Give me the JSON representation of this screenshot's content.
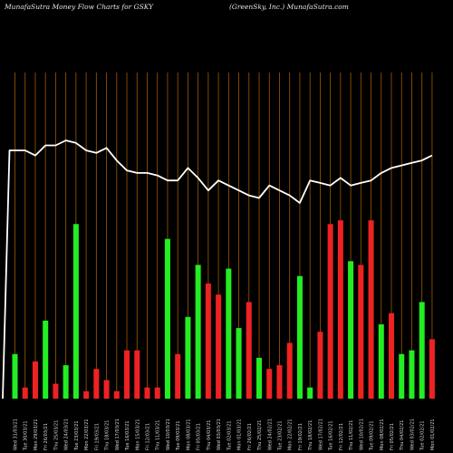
{
  "header": {
    "left_title": "MunafaSutra  Money Flow  Charts for GSKY",
    "right_title": "(GreenSky,  Inc.) MunafaSutra.com"
  },
  "colors": {
    "up": "#22ee22",
    "down": "#ee2222",
    "line": "#ffffff",
    "grid": "#a05a00",
    "text": "#d8d8d8"
  },
  "chart_data": {
    "type": "bar",
    "title": "MunafaSutra  Money Flow  Charts for GSKY",
    "xlabel": "",
    "ylabel": "",
    "grid": true,
    "categories": [
      "Wed 31/03/21",
      "Tue 30/03/21",
      "Mon 29/03/21",
      "Fri 26/03/21",
      "Thu 25/03/21",
      "Wed 24/03/21",
      "Tue 23/03/21",
      "Mon 22/03/21",
      "Fri 19/03/21",
      "Thu 18/03/21",
      "Wed 17/03/21",
      "Tue 16/03/21",
      "Mon 15/03/21",
      "Fri 12/03/21",
      "Thu 11/03/21",
      "Wed 10/03/21",
      "Tue 09/03/21",
      "Mon 08/03/21",
      "Fri 05/03/21",
      "Thu 04/03/21",
      "Wed 03/03/21",
      "Tue 02/03/21",
      "Mon 01/03/21",
      "Fri 26/02/21",
      "Thu 25/02/21",
      "Wed 24/02/21",
      "Tue 23/02/21",
      "Mon 22/02/21",
      "Fri 19/02/21",
      "Thu 18/02/21",
      "Wed 17/02/21",
      "Tue 16/02/21",
      "Fri 12/02/21",
      "Thu 11/02/21",
      "Wed 10/02/21",
      "Tue 09/02/21",
      "Mon 08/02/21",
      "Fri 05/02/21",
      "Thu 04/02/21",
      "Wed 03/02/21",
      "Tue 02/02/21",
      "Mon 01/02/21"
    ],
    "series": [
      {
        "values": [
          12,
          3,
          10,
          21,
          4,
          9,
          47,
          2,
          8,
          5,
          2,
          13,
          13,
          3,
          3,
          43,
          12,
          22,
          36,
          31,
          28,
          35,
          19,
          26,
          11,
          8,
          9,
          15,
          33,
          3,
          18,
          47,
          48,
          37,
          36,
          48,
          20,
          23,
          12,
          13,
          26,
          16
        ],
        "direction": [
          "up",
          "down",
          "down",
          "up",
          "down",
          "up",
          "up",
          "down",
          "down",
          "down",
          "down",
          "down",
          "down",
          "down",
          "down",
          "up",
          "down",
          "up",
          "up",
          "down",
          "down",
          "up",
          "up",
          "down",
          "up",
          "down",
          "down",
          "down",
          "up",
          "up",
          "down",
          "down",
          "down",
          "up",
          "down",
          "down",
          "up",
          "down",
          "up",
          "up",
          "up",
          "down"
        ]
      },
      {
        "name": "price",
        "values": [
          5.2,
          5.2,
          5.1,
          5.3,
          5.3,
          5.4,
          5.35,
          5.2,
          5.15,
          5.25,
          5.0,
          4.8,
          4.75,
          4.75,
          4.7,
          4.6,
          4.6,
          4.85,
          4.65,
          4.4,
          4.6,
          4.5,
          4.4,
          4.3,
          4.25,
          4.5,
          4.4,
          4.3,
          4.15,
          4.6,
          4.55,
          4.5,
          4.65,
          4.5,
          4.55,
          4.6,
          4.75,
          4.85,
          4.9,
          4.95,
          5.0,
          5.1
        ]
      }
    ],
    "ylim": [
      0,
      100
    ]
  }
}
